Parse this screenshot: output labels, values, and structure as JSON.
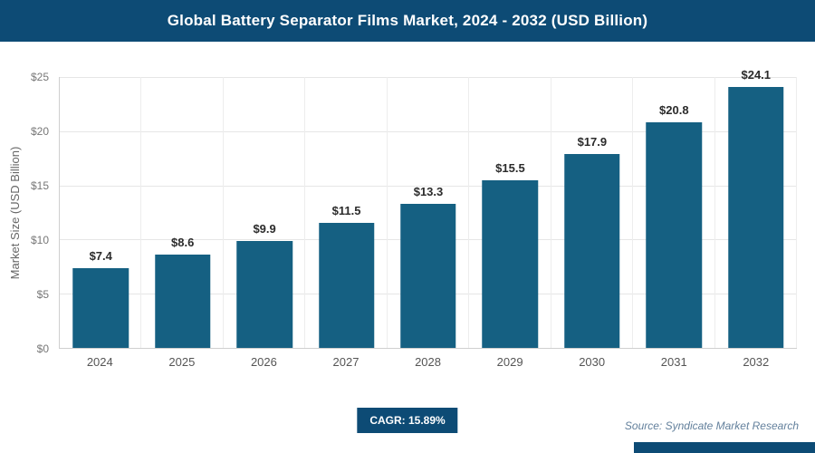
{
  "header": {
    "title": "Global Battery Separator Films Market, 2024 - 2032 (USD Billion)"
  },
  "chart_data": {
    "type": "bar",
    "categories": [
      "2024",
      "2025",
      "2026",
      "2027",
      "2028",
      "2029",
      "2030",
      "2031",
      "2032"
    ],
    "values": [
      7.4,
      8.6,
      9.9,
      11.5,
      13.3,
      15.5,
      17.9,
      20.8,
      24.1
    ],
    "value_labels": [
      "$7.4",
      "$8.6",
      "$9.9",
      "$11.5",
      "$13.3",
      "$15.5",
      "$17.9",
      "$20.8",
      "$24.1"
    ],
    "title": "Global Battery Separator Films Market, 2024 - 2032 (USD Billion)",
    "xlabel": "",
    "ylabel": "Market Size (USD Billion)",
    "ylim": [
      0,
      25
    ],
    "yticks": [
      0,
      5,
      10,
      15,
      20,
      25
    ],
    "ytick_labels": [
      "$0",
      "$5",
      "$10",
      "$15",
      "$20",
      "$25"
    ],
    "grid": true,
    "legend": "none",
    "bar_color": "#156082"
  },
  "footer": {
    "cagr_label": "CAGR: 15.89%",
    "source": "Source: Syndicate Market Research"
  },
  "colors": {
    "header_bg": "#0d4b75",
    "bar": "#156082",
    "badge_bg": "#0d4b75",
    "source_text": "#63809c"
  }
}
